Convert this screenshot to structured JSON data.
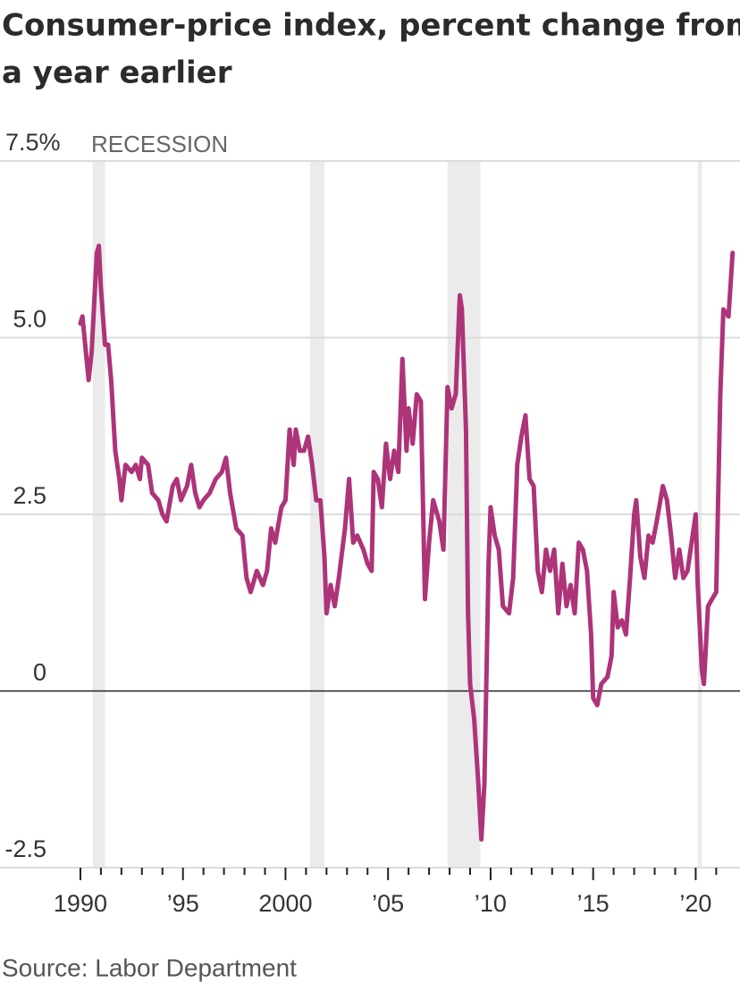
{
  "chart_data": {
    "type": "line",
    "title": "Consumer-price index, percent change from",
    "title_line2": "a year earlier",
    "source": "Source: Labor Department",
    "recession_label": "RECESSION",
    "recessions": [
      [
        1990.6,
        1991.2
      ],
      [
        2001.2,
        2001.9
      ],
      [
        2007.9,
        2009.5
      ],
      [
        2020.1,
        2020.3
      ]
    ],
    "xlim": [
      1986.08,
      2022.16
    ],
    "ylim": [
      -2.5,
      7.5
    ],
    "yticks": [
      {
        "value": 7.5,
        "label": "7.5%"
      },
      {
        "value": 5,
        "label": "5.0"
      },
      2.5,
      0,
      -2.5
    ],
    "xticks": [
      1990,
      {
        "value": 1995,
        "label": "’95"
      },
      2000,
      {
        "value": 2005,
        "label": "’05"
      },
      {
        "value": 2010,
        "label": "’10"
      },
      {
        "value": 2015,
        "label": "’15"
      },
      {
        "value": 2020,
        "label": "’20"
      }
    ],
    "xminorticks": [
      1991,
      1992,
      1993,
      1994,
      1996,
      1997,
      1998,
      1999,
      2001,
      2002,
      2003,
      2004,
      2006,
      2007,
      2008,
      2009,
      2011,
      2012,
      2013,
      2014,
      2016,
      2017,
      2018,
      2019,
      2021
    ],
    "grid": true,
    "color": "#ad3478",
    "x": [
      1990.0,
      1990.1,
      1990.3,
      1990.4,
      1990.55,
      1990.8,
      1990.9,
      1991.0,
      1991.2,
      1991.35,
      1991.5,
      1991.7,
      1991.9,
      1992.0,
      1992.2,
      1992.5,
      1992.7,
      1992.9,
      1993.0,
      1993.3,
      1993.5,
      1993.8,
      1994.0,
      1994.2,
      1994.5,
      1994.7,
      1994.9,
      1995.2,
      1995.4,
      1995.6,
      1995.8,
      1996.0,
      1996.3,
      1996.6,
      1996.9,
      1997.1,
      1997.3,
      1997.6,
      1997.9,
      1998.1,
      1998.3,
      1998.6,
      1998.9,
      1999.1,
      1999.3,
      1999.5,
      1999.8,
      2000.0,
      2000.2,
      2000.4,
      2000.5,
      2000.7,
      2000.9,
      2001.1,
      2001.3,
      2001.5,
      2001.7,
      2001.9,
      2002.0,
      2002.2,
      2002.4,
      2002.6,
      2002.9,
      2003.1,
      2003.3,
      2003.5,
      2003.8,
      2004.0,
      2004.2,
      2004.3,
      2004.5,
      2004.7,
      2004.9,
      2005.1,
      2005.3,
      2005.5,
      2005.7,
      2005.9,
      2006.0,
      2006.2,
      2006.4,
      2006.6,
      2006.8,
      2007.0,
      2007.2,
      2007.5,
      2007.7,
      2007.9,
      2008.1,
      2008.3,
      2008.5,
      2008.6,
      2008.8,
      2008.9,
      2009.0,
      2009.2,
      2009.4,
      2009.55,
      2009.7,
      2009.9,
      2010.0,
      2010.2,
      2010.4,
      2010.6,
      2010.9,
      2011.1,
      2011.3,
      2011.5,
      2011.7,
      2011.9,
      2012.1,
      2012.3,
      2012.5,
      2012.7,
      2012.9,
      2013.1,
      2013.3,
      2013.5,
      2013.7,
      2013.9,
      2014.1,
      2014.3,
      2014.5,
      2014.7,
      2014.9,
      2015.0,
      2015.2,
      2015.4,
      2015.7,
      2015.9,
      2016.0,
      2016.2,
      2016.4,
      2016.6,
      2016.8,
      2017.0,
      2017.1,
      2017.3,
      2017.5,
      2017.7,
      2017.9,
      2018.1,
      2018.4,
      2018.6,
      2018.8,
      2019.0,
      2019.2,
      2019.4,
      2019.6,
      2019.8,
      2020.0,
      2020.1,
      2020.3,
      2020.4,
      2020.6,
      2020.8,
      2021.0,
      2021.2,
      2021.35,
      2021.6,
      2021.8
    ],
    "values": [
      5.2,
      5.3,
      4.7,
      4.4,
      4.8,
      6.2,
      6.3,
      5.7,
      4.9,
      4.9,
      4.4,
      3.4,
      3.0,
      2.7,
      3.2,
      3.1,
      3.2,
      3.0,
      3.3,
      3.2,
      2.8,
      2.7,
      2.5,
      2.4,
      2.9,
      3.0,
      2.7,
      2.9,
      3.2,
      2.8,
      2.6,
      2.7,
      2.8,
      3.0,
      3.1,
      3.3,
      2.8,
      2.3,
      2.2,
      1.6,
      1.4,
      1.7,
      1.5,
      1.7,
      2.3,
      2.1,
      2.6,
      2.7,
      3.7,
      3.2,
      3.7,
      3.4,
      3.4,
      3.6,
      3.2,
      2.7,
      2.7,
      1.9,
      1.1,
      1.5,
      1.2,
      1.6,
      2.3,
      3.0,
      2.1,
      2.2,
      2.0,
      1.8,
      1.7,
      3.1,
      3.0,
      2.6,
      3.5,
      3.0,
      3.4,
      3.1,
      4.7,
      3.4,
      4.0,
      3.5,
      4.2,
      4.1,
      1.3,
      2.1,
      2.7,
      2.4,
      2.0,
      4.3,
      4.0,
      4.2,
      5.6,
      5.4,
      3.7,
      1.1,
      0.1,
      -0.4,
      -1.3,
      -2.1,
      -1.3,
      1.8,
      2.6,
      2.2,
      2.0,
      1.2,
      1.1,
      1.6,
      3.2,
      3.6,
      3.9,
      3.0,
      2.9,
      1.7,
      1.4,
      2.0,
      1.7,
      2.0,
      1.1,
      1.8,
      1.2,
      1.5,
      1.1,
      2.1,
      2.0,
      1.7,
      0.8,
      -0.1,
      -0.2,
      0.1,
      0.2,
      0.5,
      1.4,
      0.9,
      1.0,
      0.8,
      1.6,
      2.5,
      2.7,
      1.9,
      1.6,
      2.2,
      2.1,
      2.4,
      2.9,
      2.7,
      2.2,
      1.6,
      2.0,
      1.6,
      1.7,
      2.1,
      2.5,
      1.5,
      0.3,
      0.1,
      1.2,
      1.3,
      1.4,
      4.2,
      5.4,
      5.3,
      6.2
    ]
  }
}
